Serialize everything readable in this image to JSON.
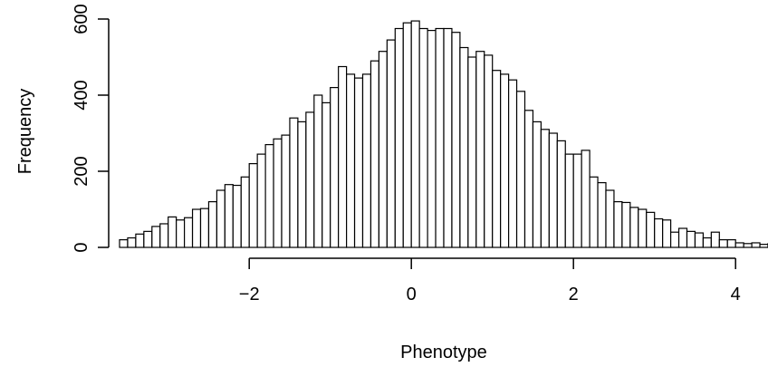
{
  "chart_data": {
    "type": "bar",
    "title": "",
    "xlabel": "Phenotype",
    "ylabel": "Frequency",
    "x_ticks": [
      -2,
      0,
      2,
      4
    ],
    "y_ticks": [
      0,
      200,
      400,
      600
    ],
    "x_tick_labels": [
      "−2",
      "0",
      "2",
      "4"
    ],
    "y_tick_labels": [
      "0",
      "200",
      "400",
      "600"
    ],
    "xlim": [
      -3.6,
      4.4
    ],
    "ylim": [
      0,
      600
    ],
    "bin_width": 0.1,
    "bin_start": -3.6,
    "values": [
      20,
      25,
      35,
      42,
      55,
      62,
      80,
      72,
      78,
      100,
      102,
      120,
      150,
      165,
      163,
      185,
      220,
      245,
      270,
      285,
      295,
      340,
      330,
      355,
      400,
      380,
      420,
      475,
      455,
      445,
      455,
      490,
      515,
      545,
      575,
      590,
      595,
      575,
      570,
      575,
      575,
      565,
      525,
      500,
      515,
      505,
      465,
      455,
      440,
      410,
      360,
      330,
      310,
      300,
      280,
      245,
      245,
      255,
      185,
      170,
      150,
      120,
      118,
      105,
      100,
      92,
      75,
      72,
      40,
      50,
      42,
      38,
      25,
      40,
      20,
      20,
      12,
      10,
      12,
      8,
      10,
      6,
      8,
      6
    ],
    "fill": "#ffffff",
    "stroke": "#000000",
    "grid": false,
    "legend": "none"
  }
}
